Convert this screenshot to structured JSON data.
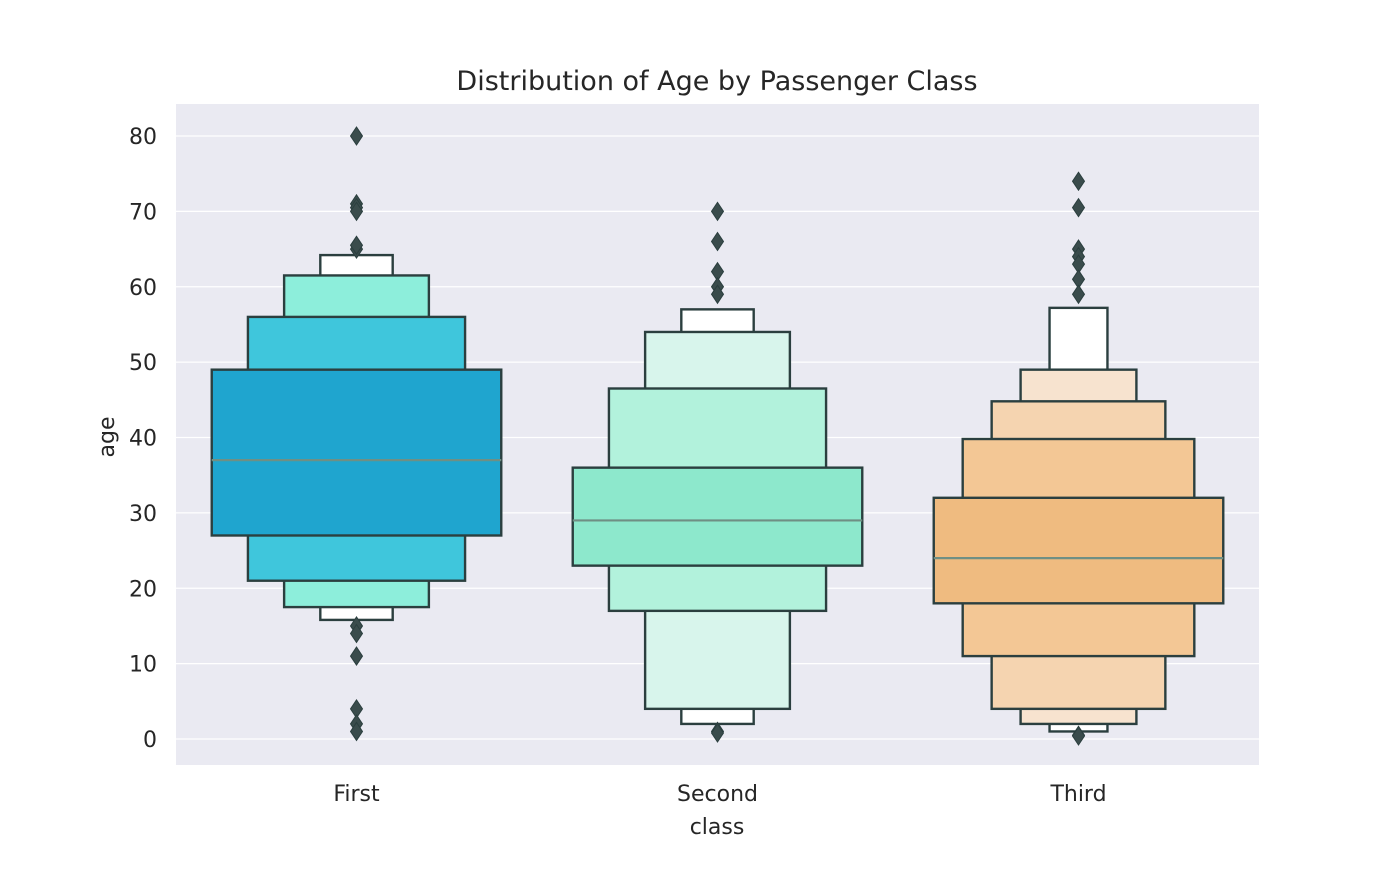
{
  "chart_data": {
    "type": "boxen",
    "title": "Distribution of Age by Passenger Class",
    "xlabel": "class",
    "ylabel": "age",
    "ylim": [
      -3.5,
      84
    ],
    "yticks": [
      0,
      10,
      20,
      30,
      40,
      50,
      60,
      70,
      80
    ],
    "grid": true,
    "edge_color": "#2b3f3f",
    "background_color": "#eaeaf2",
    "categories": [
      "First",
      "Second",
      "Third"
    ],
    "series": [
      {
        "name": "First",
        "base_color": "#1fa5cf",
        "median": 37,
        "boxes": [
          {
            "low": 27,
            "high": 49,
            "color": "#1fa5cf"
          },
          {
            "low": 21,
            "high": 56,
            "color": "#3fc6dc"
          },
          {
            "low": 17.5,
            "high": 61.5,
            "color": "#8deedb"
          },
          {
            "low": 15.8,
            "high": 64.2,
            "color": "#ffffff"
          }
        ],
        "outliers": [
          80,
          71,
          70.5,
          70,
          65,
          65.5,
          15,
          14,
          11,
          4,
          2,
          1
        ]
      },
      {
        "name": "Second",
        "base_color": "#8de8cc",
        "median": 29,
        "boxes": [
          {
            "low": 23,
            "high": 36,
            "color": "#8de8cc"
          },
          {
            "low": 17,
            "high": 46.5,
            "color": "#b2f2dc"
          },
          {
            "low": 4,
            "high": 54,
            "color": "#d8f5ec"
          },
          {
            "low": 2,
            "high": 57,
            "color": "#ffffff"
          }
        ],
        "outliers": [
          70,
          66,
          62,
          60,
          59,
          1,
          0.8
        ]
      },
      {
        "name": "Third",
        "base_color": "#efbb80",
        "median": 24,
        "boxes": [
          {
            "low": 18,
            "high": 32,
            "color": "#efbb80"
          },
          {
            "low": 11,
            "high": 39.8,
            "color": "#f3c795"
          },
          {
            "low": 4,
            "high": 44.8,
            "color": "#f5d4b0"
          },
          {
            "low": 2,
            "high": 49,
            "color": "#f7e3cf"
          },
          {
            "low": 1,
            "high": 57.2,
            "color": "#ffffff"
          }
        ],
        "outliers": [
          74,
          70.5,
          65,
          64,
          63,
          61,
          59,
          0.5,
          0.4
        ]
      }
    ]
  }
}
